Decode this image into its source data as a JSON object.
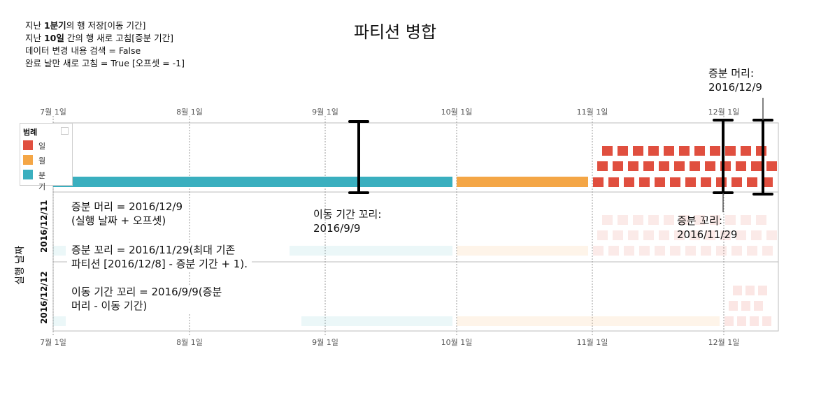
{
  "params": {
    "line1_a": "지난 ",
    "line1_b": "1분기",
    "line1_c": "의 행 저장[이동 기간]",
    "line2_a": "지난 ",
    "line2_b": "10일",
    "line2_c": " 간의 행 새로 고침[증분 기간]",
    "line3": "데이터 변경 내용 검색 = False",
    "line4": "완료 날만 새로 고침 = True [오프셋 = -1]"
  },
  "title": "파티션 병합",
  "axis": {
    "months": [
      "7월 1일",
      "8월 1일",
      "9월 1일",
      "10월 1일",
      "11월 1일",
      "12월 1일"
    ],
    "y_label": "실행 날짜"
  },
  "rows": [
    "2016/12/11",
    "2016/12/12"
  ],
  "legend": {
    "title": "범례",
    "items": [
      {
        "label": "일",
        "color": "#e04f3f"
      },
      {
        "label": "월",
        "color": "#f4a646"
      },
      {
        "label": "분기",
        "color": "#3aafbf"
      }
    ]
  },
  "annotations": {
    "head_top_1": "증분 머리:",
    "head_top_2": "2016/12/9",
    "tail_right_1": "증분 꼬리:",
    "tail_right_2": "2016/11/29",
    "rolling_tail_1": "이동 기간 꼬리:",
    "rolling_tail_2": "2016/9/9",
    "note_head_1": "증분 머리 = 2016/12/9",
    "note_head_2": "(실행 날짜 + 오프셋)",
    "note_tail_1": "증분 꼬리 = 2016/11/29(최대 기존",
    "note_tail_2": "파티션 [2016/12/8] - 증분 기간 + 1).",
    "note_roll_1": "이동 기간 꼬리 = 2016/9/9(증분",
    "note_roll_2": "머리 - 이동 기간)"
  },
  "colors": {
    "day": "#e04f3f",
    "month": "#f4a646",
    "quarter": "#3aafbf",
    "marker": "#000000",
    "grid": "#999999"
  }
}
